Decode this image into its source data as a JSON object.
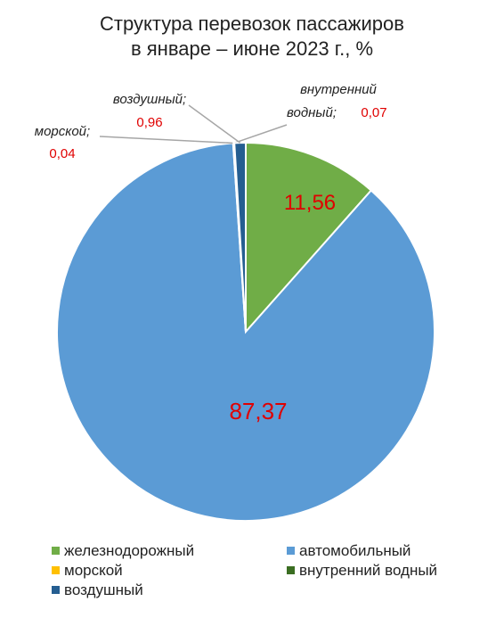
{
  "chart_data": {
    "type": "pie",
    "title": [
      "Структура перевозок пассажиров",
      "в январе – июне 2023 г., %"
    ],
    "categories": [
      "железнодорожный",
      "автомобильный",
      "морской",
      "внутренний водный",
      "воздушный"
    ],
    "values": [
      11.56,
      87.37,
      0.04,
      0.07,
      0.96
    ],
    "value_labels": [
      "11,56",
      "87,37",
      "0,04",
      "0,07",
      "0,96"
    ],
    "colors": [
      "#70ad47",
      "#5b9bd5",
      "#ffc000",
      "#3b6e22",
      "#255e91"
    ],
    "label_separator": ";",
    "legend": "bottom"
  }
}
